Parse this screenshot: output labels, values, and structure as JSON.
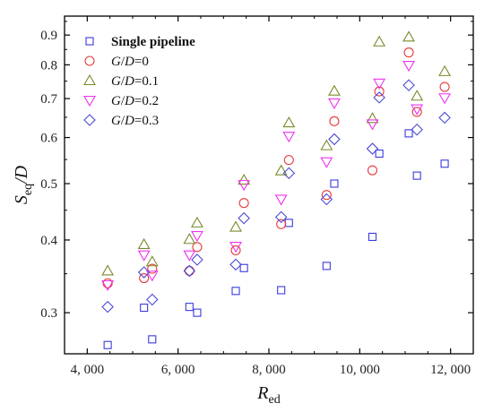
{
  "chart_data": {
    "type": "scatter",
    "xlabel": {
      "main": "R",
      "sub": "ed"
    },
    "ylabel": {
      "main": "S",
      "sub": "eq",
      "suffix": "/D"
    },
    "xlim": [
      3500,
      12500
    ],
    "ylim": [
      0.255,
      0.97
    ],
    "yscale": "log",
    "x_ticks": [
      4000,
      6000,
      8000,
      10000,
      12000
    ],
    "x_tick_labels": [
      "4, 000",
      "6, 000",
      "8, 000",
      "10, 000",
      "12, 000"
    ],
    "y_ticks": [
      0.3,
      0.4,
      0.5,
      0.6,
      0.7,
      0.8,
      0.9
    ],
    "y_tick_labels": [
      "0.3",
      "0.4",
      "0.5",
      "0.6",
      "0.7",
      "0.8",
      "0.9"
    ],
    "grid": false,
    "legend_position": "top-left",
    "series": [
      {
        "name": "Single pipeline",
        "legend": [
          {
            "text": "Single pipeline",
            "italic": false,
            "bold": true
          }
        ],
        "marker": "square",
        "color": "#3a3adf",
        "x": [
          4450,
          5250,
          5430,
          6250,
          6420,
          7270,
          7450,
          8270,
          8440,
          9270,
          9440,
          10280,
          10430,
          11080,
          11260,
          11870
        ],
        "y": [
          0.264,
          0.306,
          0.27,
          0.307,
          0.3,
          0.327,
          0.358,
          0.328,
          0.428,
          0.361,
          0.5,
          0.405,
          0.563,
          0.61,
          0.516,
          0.541
        ]
      },
      {
        "name": "G/D=0",
        "legend": [
          {
            "text": "G",
            "italic": true
          },
          {
            "text": "/",
            "italic": false
          },
          {
            "text": "D",
            "italic": true
          },
          {
            "text": "=0",
            "italic": false
          }
        ],
        "marker": "circle",
        "color": "#e63a3a",
        "x": [
          4450,
          5250,
          5430,
          6250,
          6420,
          7270,
          7450,
          8270,
          8440,
          9270,
          9440,
          10280,
          10430,
          11080,
          11260,
          11870
        ],
        "y": [
          0.337,
          0.344,
          0.357,
          0.354,
          0.389,
          0.384,
          0.463,
          0.426,
          0.549,
          0.478,
          0.64,
          0.527,
          0.72,
          0.84,
          0.664,
          0.733
        ]
      },
      {
        "name": "G/D=0.1",
        "legend": [
          {
            "text": "G",
            "italic": true
          },
          {
            "text": "/",
            "italic": false
          },
          {
            "text": "D",
            "italic": true
          },
          {
            "text": "=0.1",
            "italic": false
          }
        ],
        "marker": "triangle-up",
        "color": "#7a8a2a",
        "x": [
          4450,
          5250,
          5430,
          6250,
          6420,
          7270,
          7450,
          8270,
          8440,
          9270,
          9440,
          10280,
          10430,
          11080,
          11260,
          11870
        ],
        "y": [
          0.354,
          0.393,
          0.367,
          0.401,
          0.428,
          0.421,
          0.507,
          0.526,
          0.636,
          0.581,
          0.721,
          0.647,
          0.876,
          0.893,
          0.707,
          0.779
        ]
      },
      {
        "name": "G/D=0.2",
        "legend": [
          {
            "text": "G",
            "italic": true
          },
          {
            "text": "/",
            "italic": false
          },
          {
            "text": "D",
            "italic": true
          },
          {
            "text": "=0.2",
            "italic": false
          }
        ],
        "marker": "triangle-down",
        "color": "#ee33ee",
        "x": [
          4450,
          5250,
          5430,
          6250,
          6420,
          7270,
          7450,
          8270,
          8440,
          9270,
          9440,
          10280,
          10430,
          11080,
          11260,
          11870
        ],
        "y": [
          0.335,
          0.377,
          0.348,
          0.377,
          0.407,
          0.39,
          0.498,
          0.47,
          0.603,
          0.545,
          0.688,
          0.633,
          0.744,
          0.798,
          0.672,
          0.702
        ]
      },
      {
        "name": "G/D=0.3",
        "legend": [
          {
            "text": "G",
            "italic": true
          },
          {
            "text": "/",
            "italic": false
          },
          {
            "text": "D",
            "italic": true
          },
          {
            "text": "=0.3",
            "italic": false
          }
        ],
        "marker": "diamond",
        "color": "#4a4ad6",
        "x": [
          4450,
          5250,
          5430,
          6250,
          6420,
          7270,
          7450,
          8270,
          8440,
          9270,
          9440,
          10280,
          10430,
          11080,
          11260,
          11870
        ],
        "y": [
          0.307,
          0.352,
          0.316,
          0.354,
          0.37,
          0.363,
          0.436,
          0.438,
          0.521,
          0.47,
          0.596,
          0.574,
          0.703,
          0.738,
          0.619,
          0.649
        ]
      }
    ]
  }
}
